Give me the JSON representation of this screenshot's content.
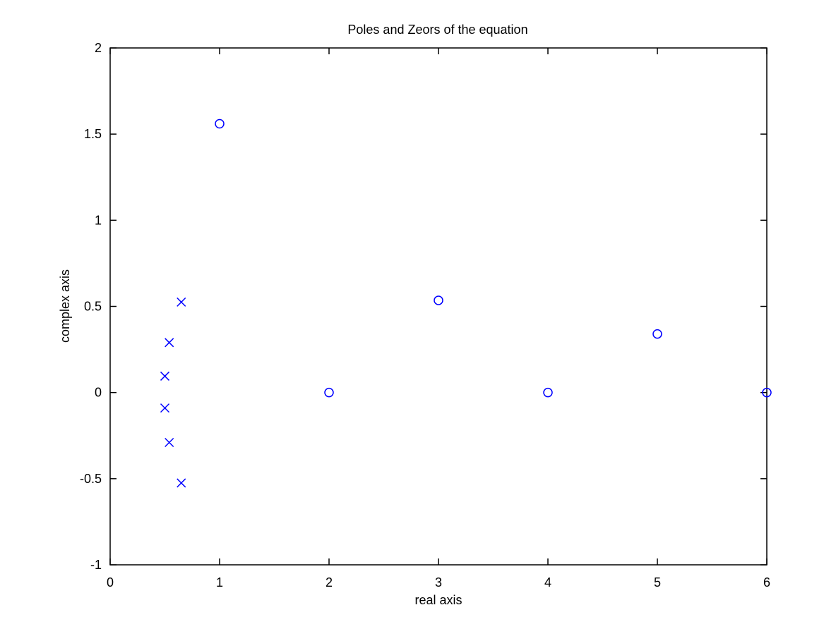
{
  "chart_data": {
    "type": "scatter",
    "title": "Poles and Zeors of the equation",
    "xlabel": "real axis",
    "ylabel": "complex axis",
    "xlim": [
      0,
      6
    ],
    "ylim": [
      -1,
      2
    ],
    "xticks": [
      0,
      1,
      2,
      3,
      4,
      5,
      6
    ],
    "yticks": [
      -1,
      -0.5,
      0,
      0.5,
      1,
      1.5,
      2
    ],
    "xtick_labels": [
      "0",
      "1",
      "2",
      "3",
      "4",
      "5",
      "6"
    ],
    "ytick_labels": [
      "-1",
      "-0.5",
      "0",
      "0.5",
      "1",
      "1.5",
      "2"
    ],
    "grid": false,
    "color": "#0000ff",
    "series": [
      {
        "marker": "circle",
        "points": [
          {
            "x": 1,
            "y": 1.56
          },
          {
            "x": 2,
            "y": 0
          },
          {
            "x": 3,
            "y": 0.535
          },
          {
            "x": 4,
            "y": 0
          },
          {
            "x": 5,
            "y": 0.34
          },
          {
            "x": 6,
            "y": 0
          }
        ]
      },
      {
        "marker": "cross",
        "points": [
          {
            "x": 0.65,
            "y": 0.525
          },
          {
            "x": 0.54,
            "y": 0.29
          },
          {
            "x": 0.5,
            "y": 0.095
          },
          {
            "x": 0.5,
            "y": -0.09
          },
          {
            "x": 0.54,
            "y": -0.29
          },
          {
            "x": 0.65,
            "y": -0.525
          }
        ]
      }
    ]
  }
}
